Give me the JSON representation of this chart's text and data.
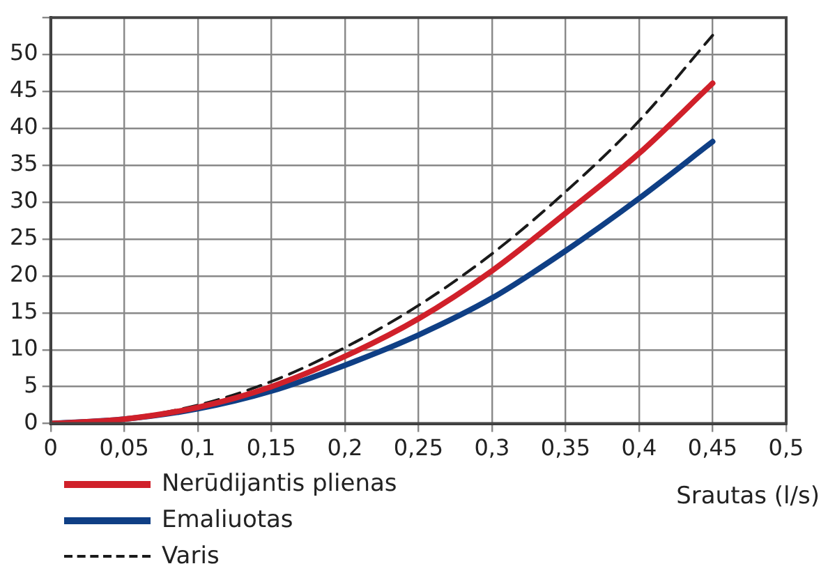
{
  "chart_data": {
    "type": "line",
    "xlabel": "Srautas (l/s)",
    "x": [
      0,
      0.05,
      0.1,
      0.15,
      0.2,
      0.25,
      0.3,
      0.35,
      0.4,
      0.45
    ],
    "series": [
      {
        "name": "Nerūdijantis plienas",
        "color": "#d0202a",
        "values": [
          0,
          0.6,
          2.2,
          5,
          9.1,
          14.2,
          20.7,
          28.5,
          36.6,
          46.1
        ]
      },
      {
        "name": "Emaliuotas",
        "color": "#0f3f85",
        "values": [
          0,
          0.6,
          2,
          4.4,
          7.9,
          12,
          17,
          23.4,
          30.5,
          38.2
        ]
      },
      {
        "name": "Varis",
        "color": "#1a1a1a",
        "line_style": "dashed",
        "values": [
          0,
          0.7,
          2.5,
          5.7,
          10.3,
          16,
          23,
          31.4,
          41,
          52.6
        ]
      }
    ],
    "xlim": [
      0,
      0.5
    ],
    "xticks": [
      {
        "value": 0,
        "label": "0"
      },
      {
        "value": 0.05,
        "label": "0,05"
      },
      {
        "value": 0.1,
        "label": "0,1"
      },
      {
        "value": 0.15,
        "label": "0,15"
      },
      {
        "value": 0.2,
        "label": "0,2"
      },
      {
        "value": 0.25,
        "label": "0,25"
      },
      {
        "value": 0.3,
        "label": "0,3"
      },
      {
        "value": 0.35,
        "label": "0,35"
      },
      {
        "value": 0.4,
        "label": "0,4"
      },
      {
        "value": 0.45,
        "label": "0,45"
      },
      {
        "value": 0.5,
        "label": "0,5"
      }
    ],
    "ylim": [
      0,
      55
    ],
    "yticks": [
      0,
      5,
      10,
      15,
      20,
      25,
      30,
      35,
      40,
      45,
      50,
      {
        "value": 55,
        "label": null
      }
    ],
    "grid": true,
    "legend": "bottom left",
    "marker": "none"
  }
}
